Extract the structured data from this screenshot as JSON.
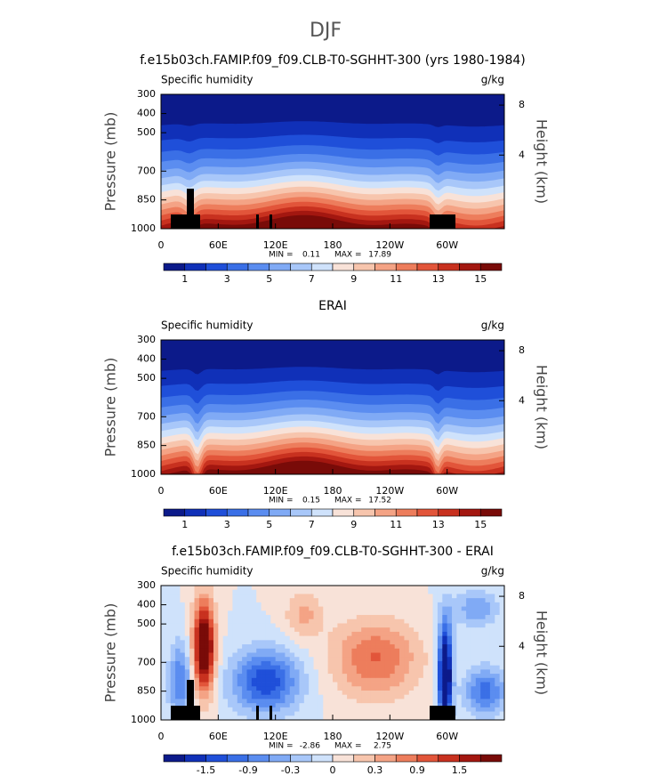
{
  "title": "DJF",
  "chart_data": [
    {
      "type": "contour",
      "field": "humidity",
      "title": "f.e15b03ch.FAMIP.f09_f09.CLB-T0-SGHHT-300 (yrs 1980-1984)",
      "left_string": "Specific humidity",
      "right_string": "g/kg",
      "ylabel": "Pressure (mb)",
      "y2label": "Height (km)",
      "xlim": [
        0,
        360
      ],
      "xticks": [
        0,
        {
          "value": 60,
          "label": "60E"
        },
        {
          "value": 120,
          "label": "120E"
        },
        180,
        {
          "value": 240,
          "label": "120W"
        },
        {
          "value": 300,
          "label": "60W"
        }
      ],
      "ylim": [
        1000,
        300
      ],
      "yticks": [
        300,
        400,
        500,
        700,
        850,
        1000
      ],
      "y2ticks": [
        4,
        8
      ],
      "min_label": "MIN =",
      "min": 0.11,
      "max_label": "MAX =",
      "max": 17.89,
      "colorbar": {
        "colors": [
          "#0c1a8a",
          "#1030b8",
          "#1f4fd9",
          "#3a6fe6",
          "#5b8df0",
          "#80aaf5",
          "#a8c7f9",
          "#cfe2fb",
          "#f8e2d8",
          "#f7c5ad",
          "#f4a385",
          "#ed7d5c",
          "#e2553a",
          "#c8311f",
          "#a31710",
          "#790b08"
        ],
        "ticks": [
          1,
          3,
          5,
          7,
          9,
          11,
          13,
          15
        ]
      }
    },
    {
      "type": "contour",
      "field": "humidity",
      "title": "ERAI",
      "left_string": "Specific humidity",
      "right_string": "g/kg",
      "ylabel": "Pressure (mb)",
      "y2label": "Height (km)",
      "xlim": [
        0,
        360
      ],
      "xticks": [
        0,
        {
          "value": 60,
          "label": "60E"
        },
        {
          "value": 120,
          "label": "120E"
        },
        180,
        {
          "value": 240,
          "label": "120W"
        },
        {
          "value": 300,
          "label": "60W"
        }
      ],
      "ylim": [
        1000,
        300
      ],
      "yticks": [
        300,
        400,
        500,
        700,
        850,
        1000
      ],
      "y2ticks": [
        4,
        8
      ],
      "min_label": "MIN =",
      "min": 0.15,
      "max_label": "MAX =",
      "max": 17.52,
      "colorbar": {
        "colors": [
          "#0c1a8a",
          "#1030b8",
          "#1f4fd9",
          "#3a6fe6",
          "#5b8df0",
          "#80aaf5",
          "#a8c7f9",
          "#cfe2fb",
          "#f8e2d8",
          "#f7c5ad",
          "#f4a385",
          "#ed7d5c",
          "#e2553a",
          "#c8311f",
          "#a31710",
          "#790b08"
        ],
        "ticks": [
          1,
          3,
          5,
          7,
          9,
          11,
          13,
          15
        ]
      }
    },
    {
      "type": "contour",
      "field": "difference",
      "title": "f.e15b03ch.FAMIP.f09_f09.CLB-T0-SGHHT-300 - ERAI",
      "left_string": "Specific humidity",
      "right_string": "g/kg",
      "ylabel": "Pressure (mb)",
      "y2label": "Height (km)",
      "xlim": [
        0,
        360
      ],
      "xticks": [
        0,
        {
          "value": 60,
          "label": "60E"
        },
        {
          "value": 120,
          "label": "120E"
        },
        180,
        {
          "value": 240,
          "label": "120W"
        },
        {
          "value": 300,
          "label": "60W"
        }
      ],
      "ylim": [
        1000,
        300
      ],
      "yticks": [
        300,
        400,
        500,
        700,
        850,
        1000
      ],
      "y2ticks": [
        4,
        8
      ],
      "min_label": "MIN =",
      "min": -2.86,
      "max_label": "MAX =",
      "max": 2.75,
      "colorbar": {
        "colors": [
          "#0c1a8a",
          "#1030b8",
          "#1f4fd9",
          "#3a6fe6",
          "#5b8df0",
          "#80aaf5",
          "#a8c7f9",
          "#cfe2fb",
          "#f8e2d8",
          "#f7c5ad",
          "#f4a385",
          "#ed7d5c",
          "#e2553a",
          "#c8311f",
          "#a31710",
          "#790b08"
        ],
        "ticks": [
          -1.5,
          -0.9,
          -0.3,
          0,
          0.3,
          0.9,
          1.5
        ]
      }
    }
  ]
}
